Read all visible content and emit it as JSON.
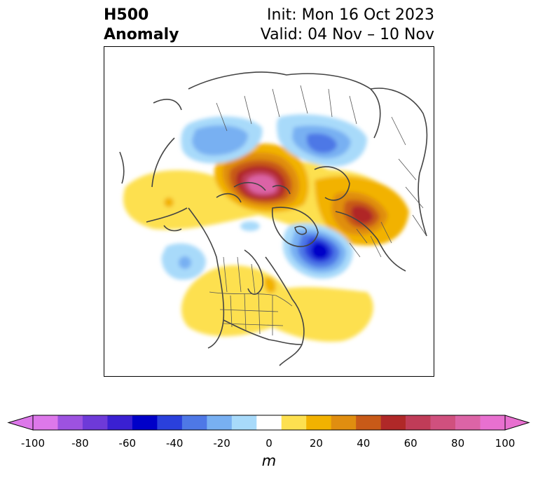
{
  "title": {
    "left_line1": "H500",
    "left_line2": "Anomaly",
    "right_line1": "Init: Mon 16 Oct 2023",
    "right_line2": "Valid: 04 Nov – 10 Nov"
  },
  "colorbar": {
    "unit": "m",
    "ticks": [
      "-100",
      "-80",
      "-60",
      "-40",
      "-20",
      "0",
      "20",
      "40",
      "60",
      "80",
      "100"
    ],
    "levels": [
      -100,
      -90,
      -80,
      -70,
      -60,
      -50,
      -40,
      -30,
      -20,
      -10,
      10,
      20,
      30,
      40,
      50,
      60,
      70,
      80,
      90,
      100
    ],
    "colors": [
      "#dd78ea",
      "#9d52e0",
      "#6e3ad8",
      "#3a20d2",
      "#0000c8",
      "#2a40dc",
      "#4e78e6",
      "#78b0f2",
      "#a8dafa",
      "#ffffff",
      "#fde050",
      "#f2b200",
      "#e08e10",
      "#c85a18",
      "#b02828",
      "#c03c58",
      "#d0507e",
      "#dc64a6",
      "#e870d0"
    ]
  },
  "colors": {
    "map_border": "#000000",
    "coastline": "#444444"
  }
}
